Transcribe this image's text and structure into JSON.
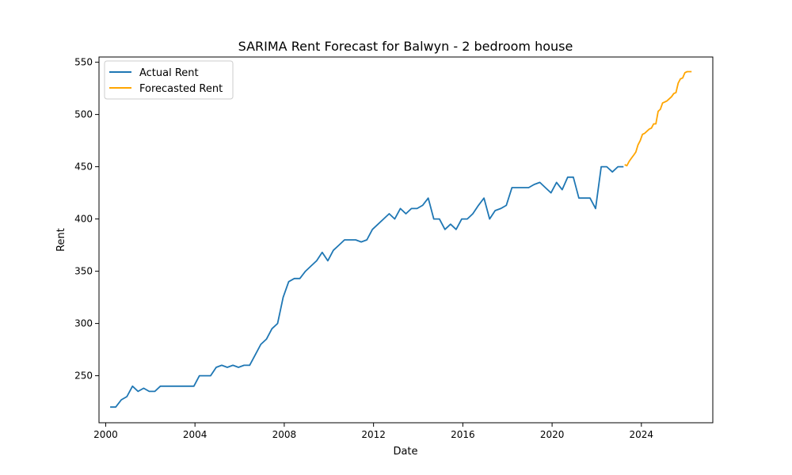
{
  "chart_data": {
    "type": "line",
    "title": "SARIMA Rent Forecast for Balwyn - 2 bedroom house",
    "xlabel": "Date",
    "ylabel": "Rent",
    "xlim": [
      1999.7,
      2027.2
    ],
    "ylim": [
      205,
      555
    ],
    "xticks": [
      2000,
      2004,
      2008,
      2012,
      2016,
      2020,
      2024
    ],
    "yticks": [
      250,
      300,
      350,
      400,
      450,
      500,
      550
    ],
    "grid": false,
    "legend_position": "top-left",
    "series": [
      {
        "name": "Actual Rent",
        "color": "#1f77b4",
        "x": [
          2000.2,
          2000.45,
          2000.7,
          2000.95,
          2001.2,
          2001.45,
          2001.7,
          2001.95,
          2002.2,
          2002.45,
          2002.7,
          2002.95,
          2003.2,
          2003.45,
          2003.7,
          2003.95,
          2004.2,
          2004.45,
          2004.7,
          2004.95,
          2005.2,
          2005.45,
          2005.7,
          2005.95,
          2006.2,
          2006.45,
          2006.7,
          2006.95,
          2007.2,
          2007.45,
          2007.7,
          2007.95,
          2008.2,
          2008.45,
          2008.7,
          2008.95,
          2009.2,
          2009.45,
          2009.7,
          2009.95,
          2010.2,
          2010.45,
          2010.7,
          2010.95,
          2011.2,
          2011.45,
          2011.7,
          2011.95,
          2012.2,
          2012.45,
          2012.7,
          2012.95,
          2013.2,
          2013.45,
          2013.7,
          2013.95,
          2014.2,
          2014.45,
          2014.7,
          2014.95,
          2015.2,
          2015.45,
          2015.7,
          2015.95,
          2016.2,
          2016.45,
          2016.7,
          2016.95,
          2017.2,
          2017.45,
          2017.7,
          2017.95,
          2018.2,
          2018.95,
          2019.2,
          2019.45,
          2019.7,
          2019.95,
          2020.2,
          2020.45,
          2020.7,
          2020.95,
          2021.2,
          2021.7,
          2021.95,
          2022.2,
          2022.45,
          2022.7,
          2022.95,
          2023.2
        ],
        "y": [
          220,
          220,
          227,
          230,
          240,
          235,
          238,
          235,
          235,
          240,
          240,
          240,
          240,
          240,
          240,
          240,
          250,
          250,
          250,
          258,
          260,
          258,
          260,
          258,
          260,
          260,
          270,
          280,
          285,
          295,
          300,
          325,
          340,
          343,
          343,
          350,
          355,
          360,
          368,
          360,
          370,
          375,
          380,
          380,
          380,
          378,
          380,
          390,
          395,
          400,
          405,
          400,
          410,
          405,
          410,
          410,
          413,
          420,
          400,
          400,
          390,
          395,
          390,
          400,
          400,
          405,
          413,
          420,
          400,
          408,
          410,
          413,
          430,
          430,
          433,
          435,
          430,
          425,
          435,
          428,
          440,
          440,
          420,
          420,
          410,
          450,
          450,
          445,
          450,
          450
        ]
      },
      {
        "name": "Forecasted Rent",
        "color": "#ffa500",
        "x": [
          2023.25,
          2023.35,
          2023.45,
          2023.55,
          2023.65,
          2023.75,
          2023.85,
          2023.95,
          2024.05,
          2024.15,
          2024.25,
          2024.35,
          2024.45,
          2024.55,
          2024.65,
          2024.75,
          2024.85,
          2024.95,
          2025.05,
          2025.15,
          2025.25,
          2025.35,
          2025.45,
          2025.55,
          2025.65,
          2025.75,
          2025.85,
          2025.95,
          2026.05,
          2026.15,
          2026.25
        ],
        "y": [
          452,
          451,
          455,
          458,
          461,
          464,
          471,
          475,
          481,
          482,
          484,
          486,
          487,
          491,
          491,
          503,
          505,
          511,
          512,
          513,
          515,
          517,
          520,
          521,
          530,
          534,
          535,
          540,
          541,
          541,
          541
        ]
      }
    ]
  }
}
